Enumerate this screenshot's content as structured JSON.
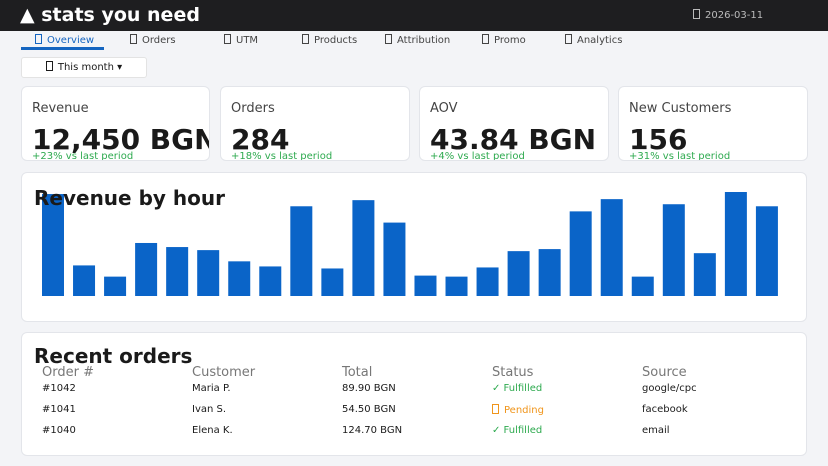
{
  "header": {
    "title": "▲ stats you need",
    "date": "2026-03-11"
  },
  "tabs": [
    "Overview",
    "Orders",
    "UTM",
    "Products",
    "Attribution",
    "Promo",
    "Analytics"
  ],
  "period": "This month ▾",
  "kpis": [
    {
      "label": "Revenue",
      "value": "12,450 BGN",
      "change": "+23% vs last period"
    },
    {
      "label": "Orders",
      "value": "284",
      "change": "+18% vs last period"
    },
    {
      "label": "AOV",
      "value": "43.84 BGN",
      "change": "+4% vs last period"
    },
    {
      "label": "New Customers",
      "value": "156",
      "change": "+31% vs last period"
    }
  ],
  "chart_data": {
    "type": "bar",
    "title": "Revenue by hour",
    "color": "#0a64c8",
    "values": [
      100,
      30,
      19,
      52,
      48,
      45,
      34,
      29,
      88,
      27,
      94,
      72,
      20,
      19,
      28,
      44,
      46,
      83,
      95,
      19,
      90,
      42,
      102,
      88
    ]
  },
  "orders": {
    "title": "Recent orders",
    "columns": [
      "Order #",
      "Customer",
      "Total",
      "Status",
      "Source"
    ],
    "rows": [
      [
        "#1042",
        "Maria P.",
        "89.90 BGN",
        "✓ Fulfilled",
        "google/cpc"
      ],
      [
        "#1041",
        "Ivan S.",
        "54.50 BGN",
        "Pending",
        "facebook"
      ],
      [
        "#1040",
        "Elena K.",
        "124.70 BGN",
        "✓ Fulfilled",
        "email"
      ]
    ]
  }
}
